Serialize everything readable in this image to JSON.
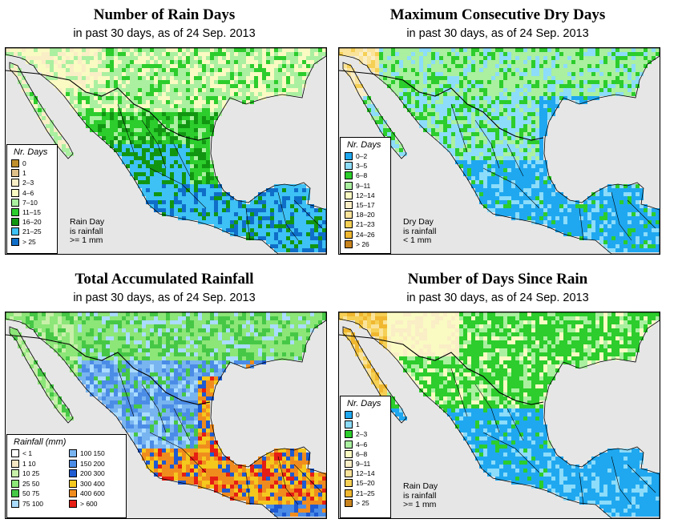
{
  "panels": [
    {
      "title": "Number of Rain Days",
      "subtitle": "in past 30 days, as of  24 Sep. 2013",
      "legend_title": "Nr. Days",
      "colors": [
        "#bf8f2e",
        "#dec08a",
        "#faeec6",
        "#fafac3",
        "#aaf0a0",
        "#2ccd2c",
        "#129612",
        "#3ec1f5",
        "#0f6ec8"
      ],
      "labels": [
        "0",
        "1",
        "2–3",
        "4–6",
        "7–10",
        "11–15",
        "16–20",
        "21–25",
        "> 25"
      ],
      "note": [
        "Rain Day",
        "is rainfall",
        ">= 1 mm"
      ]
    },
    {
      "title": "Maximum Consecutive Dry Days",
      "subtitle": "in past 30 days, as of  24 Sep. 2013",
      "legend_title": "Nr. Days",
      "colors": [
        "#1fa8f0",
        "#8cdcfa",
        "#2ccd2c",
        "#aaf0a0",
        "#fafac3",
        "#faeec6",
        "#fae39a",
        "#f5d055",
        "#f0b830",
        "#c8841e"
      ],
      "labels": [
        "0–2",
        "3–5",
        "6–8",
        "9–11",
        "12–14",
        "15–17",
        "18–20",
        "21–23",
        "24–26",
        "> 26"
      ],
      "note": [
        "Dry Day",
        "is rainfall",
        "< 1 mm"
      ]
    },
    {
      "title": "Total Accumulated Rainfall",
      "subtitle": "in past 30 days, as of  24 Sep. 2013",
      "legend_title": "Rainfall (mm)",
      "colors": [
        "#ffffff",
        "#f5e6c3",
        "#c8f0aa",
        "#8ce678",
        "#46c846",
        "#aadcff",
        "#78b4f0",
        "#4b8ce6",
        "#1e5ad2",
        "#f5c81e",
        "#f08c1e",
        "#e61e14"
      ],
      "labels": [
        "< 1",
        "1    10",
        "10    25",
        "25    50",
        "50    75",
        "75  100",
        "100  150",
        "150  200",
        "200  300",
        "300  400",
        "400  600",
        "> 600"
      ],
      "note": []
    },
    {
      "title": "Number of Days Since Rain",
      "subtitle": "in past 30 days, as of  24 Sep. 2013",
      "legend_title": "Nr. Days",
      "colors": [
        "#1fa8f0",
        "#8cdcfa",
        "#2ccd2c",
        "#aaf0a0",
        "#fafac3",
        "#faeec6",
        "#fae39a",
        "#f5d055",
        "#f0b830",
        "#c8841e"
      ],
      "labels": [
        "0",
        "1",
        "2–3",
        "4–6",
        "6–8",
        "9–11",
        "12–14",
        "15–20",
        "21–25",
        "> 25"
      ],
      "note": [
        "Rain Day",
        "is rainfall",
        ">= 1 mm"
      ]
    }
  ]
}
